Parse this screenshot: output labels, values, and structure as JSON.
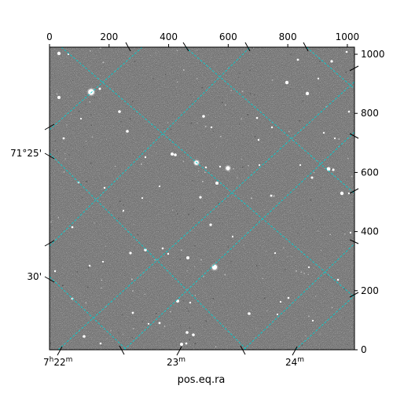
{
  "chart_data": {
    "type": "other",
    "description_free": true,
    "image": {
      "background_gray": "#7a7a7a",
      "frame_color": "#000000"
    },
    "pixel_axes": {
      "x_range": [
        0,
        1024
      ],
      "y_range": [
        0,
        1024
      ],
      "top_ticks": [
        "0",
        "200",
        "400",
        "600",
        "800",
        "1000"
      ],
      "top_tick_values": [
        0,
        200,
        400,
        600,
        800,
        1000
      ],
      "right_ticks": [
        "0",
        "200",
        "400",
        "600",
        "800",
        "1000"
      ],
      "right_tick_values": [
        0,
        200,
        400,
        600,
        800,
        1000
      ]
    },
    "world_axes": {
      "xlabel": "pos.eq.ra",
      "ra_ticks": [
        {
          "label": "7h22m",
          "main": "7",
          "sup": "h",
          "mid": "22",
          "sup2": "m"
        },
        {
          "label": "23m",
          "main": "23",
          "sup": "m"
        },
        {
          "label": "24m",
          "main": "24",
          "sup": "m"
        }
      ],
      "dec_ticks": [
        "71°25'",
        "30'"
      ]
    },
    "grid": {
      "on": true,
      "color": "#00cfd1",
      "style": "dashed"
    }
  }
}
